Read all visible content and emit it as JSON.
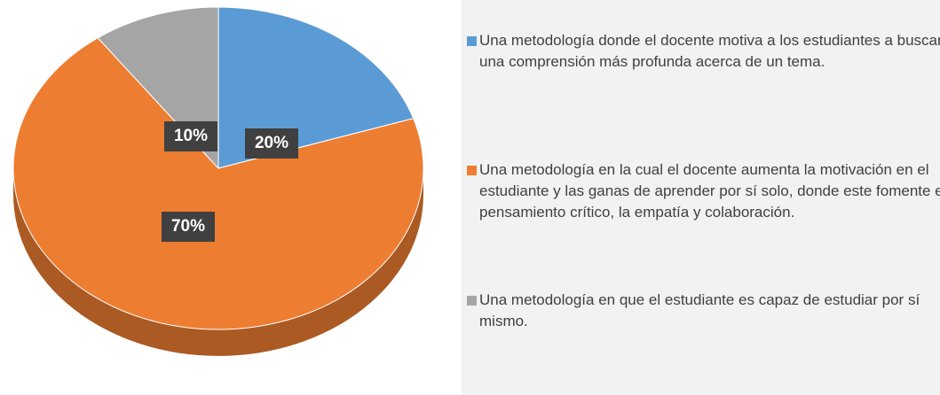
{
  "chart_data": {
    "type": "pie",
    "categories": [
      "Una metodología donde el docente motiva a los estudiantes a buscar una comprensión más profunda acerca de un tema.",
      "Una metodología en la cual el docente aumenta la motivación en el estudiante y las ganas de aprender por sí solo, donde este fomente el pensamiento crítico, la empatía y colaboración.",
      "Una metodología en que el estudiante es capaz de estudiar por sí mismo."
    ],
    "values": [
      20,
      70,
      10
    ],
    "value_labels": [
      "20%",
      "70%",
      "10%"
    ],
    "colors": [
      "#5b9bd5",
      "#ed7d31",
      "#a5a5a5"
    ]
  }
}
